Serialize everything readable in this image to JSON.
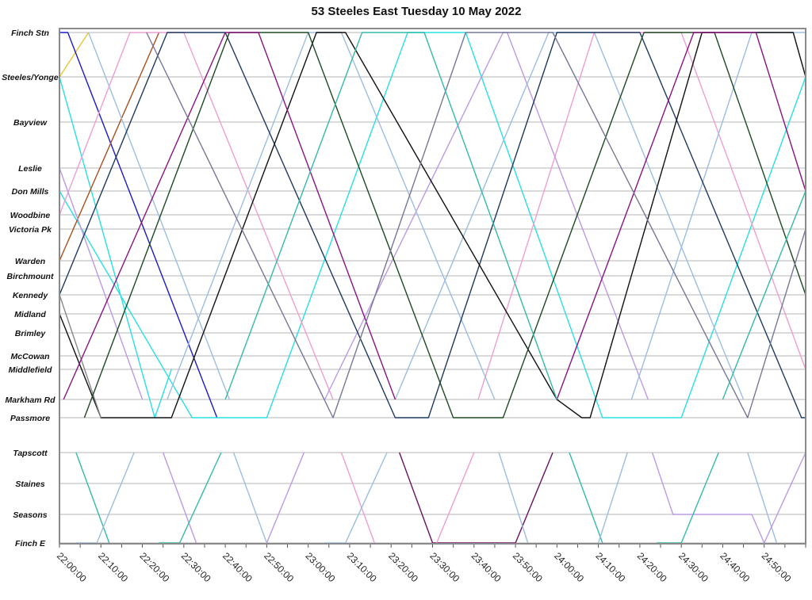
{
  "chart_data": {
    "type": "line",
    "title": "53 Steeles East Tuesday 10 May 2022",
    "x_axis": {
      "type": "time",
      "range": [
        "22:00",
        "25:00"
      ],
      "tick_labels": [
        "22:00:00",
        "22:10:00",
        "22:20:00",
        "22:30:00",
        "22:40:00",
        "22:50:00",
        "23:00:00",
        "23:10:00",
        "23:20:00",
        "23:30:00",
        "23:40:00",
        "23:50:00",
        "24:00:00",
        "24:10:00",
        "24:20:00",
        "24:30:00",
        "24:40:00",
        "24:50:00"
      ],
      "minor_tick_minutes": 5
    },
    "y_axis": {
      "type": "stops",
      "stops": [
        "Finch Stn",
        "Steeles/Yonge",
        "Bayview",
        "Leslie",
        "Don Mills",
        "Woodbine",
        "Victoria Pk",
        "Warden",
        "Birchmount",
        "Kennedy",
        "Midland",
        "Brimley",
        "McCowan",
        "Middlefield",
        "Markham Rd",
        "Passmore",
        "Tapscott",
        "Staines",
        "Seasons",
        "Finch E"
      ]
    },
    "grid": true,
    "legend": "none",
    "series": [
      {
        "color": "#e8c634",
        "points": [
          [
            "22:00",
            "Steeles/Yonge"
          ],
          [
            "22:07",
            "Finch Stn"
          ]
        ]
      },
      {
        "color": "#1a1acc",
        "points": [
          [
            "22:00",
            "Finch Stn"
          ],
          [
            "22:02",
            "Finch Stn"
          ],
          [
            "22:38",
            "Passmore"
          ]
        ]
      },
      {
        "color": "#28e0e0",
        "points": [
          [
            "22:00",
            "Steeles/Yonge"
          ],
          [
            "22:23",
            "Passmore"
          ],
          [
            "22:27",
            "Middlefield"
          ]
        ]
      },
      {
        "color": "#28e0e0",
        "points": [
          [
            "22:00",
            "Don Mills"
          ],
          [
            "22:32",
            "Passmore"
          ],
          [
            "22:50",
            "Passmore"
          ],
          [
            "23:24",
            "Finch Stn"
          ],
          [
            "23:38",
            "Finch Stn"
          ],
          [
            "24:11",
            "Passmore"
          ],
          [
            "24:30",
            "Passmore"
          ],
          [
            "25:00",
            "Steeles/Yonge"
          ]
        ]
      },
      {
        "color": "#a8501c",
        "points": [
          [
            "22:00",
            "Warden"
          ],
          [
            "22:24",
            "Finch Stn"
          ]
        ]
      },
      {
        "color": "#ee9fd0",
        "points": [
          [
            "22:00",
            "Woodbine"
          ],
          [
            "22:17",
            "Finch Stn"
          ],
          [
            "22:30",
            "Finch Stn"
          ],
          [
            "23:06",
            "Markham Rd"
          ]
        ]
      },
      {
        "color": "#ee9fd0",
        "points": [
          [
            "23:41",
            "Markham Rd"
          ],
          [
            "24:09",
            "Finch Stn"
          ],
          [
            "24:30",
            "Finch Stn"
          ],
          [
            "25:00",
            "Middlefield"
          ]
        ]
      },
      {
        "color": "#bb9ae2",
        "points": [
          [
            "22:00",
            "Leslie"
          ],
          [
            "22:20",
            "Markham Rd"
          ]
        ]
      },
      {
        "color": "#bb9ae2",
        "points": [
          [
            "23:04",
            "Markham Rd"
          ],
          [
            "23:47",
            "Finch Stn"
          ],
          [
            "23:48",
            "Finch Stn"
          ],
          [
            "24:22",
            "Markham Rd"
          ]
        ]
      },
      {
        "color": "#9dbde0",
        "points": [
          [
            "22:07",
            "Finch Stn"
          ],
          [
            "22:41",
            "Markham Rd"
          ]
        ]
      },
      {
        "color": "#9dbde0",
        "points": [
          [
            "22:26",
            "Markham Rd"
          ],
          [
            "23:00",
            "Finch Stn"
          ],
          [
            "23:08",
            "Finch Stn"
          ],
          [
            "23:45",
            "Markham Rd"
          ]
        ]
      },
      {
        "color": "#9dbde0",
        "points": [
          [
            "23:21",
            "Markham Rd"
          ],
          [
            "23:58",
            "Finch Stn"
          ],
          [
            "24:09",
            "Finch Stn"
          ],
          [
            "24:45",
            "Markham Rd"
          ]
        ]
      },
      {
        "color": "#9dbde0",
        "points": [
          [
            "24:18",
            "Markham Rd"
          ],
          [
            "24:47",
            "Finch Stn"
          ],
          [
            "25:00",
            "Finch Stn"
          ]
        ]
      },
      {
        "color": "#1f3a5f",
        "points": [
          [
            "22:00",
            "Kennedy"
          ],
          [
            "22:26",
            "Finch Stn"
          ],
          [
            "22:40",
            "Finch Stn"
          ],
          [
            "23:21",
            "Passmore"
          ],
          [
            "23:29",
            "Passmore"
          ],
          [
            "24:00",
            "Finch Stn"
          ],
          [
            "24:20",
            "Finch Stn"
          ],
          [
            "24:59",
            "Passmore"
          ],
          [
            "25:00",
            "Passmore"
          ]
        ]
      },
      {
        "color": "#111111",
        "points": [
          [
            "22:00",
            "Midland"
          ],
          [
            "22:10",
            "Passmore"
          ],
          [
            "22:27",
            "Passmore"
          ],
          [
            "23:02",
            "Finch Stn"
          ],
          [
            "23:09",
            "Finch Stn"
          ],
          [
            "24:00",
            "Markham Rd"
          ],
          [
            "24:06",
            "Passmore"
          ],
          [
            "24:08",
            "Passmore"
          ],
          [
            "24:35",
            "Finch Stn"
          ],
          [
            "24:57",
            "Finch Stn"
          ],
          [
            "25:00",
            "Steeles/Yonge"
          ]
        ]
      },
      {
        "color": "#888888",
        "points": [
          [
            "22:00",
            "Kennedy"
          ],
          [
            "22:10",
            "Passmore"
          ]
        ]
      },
      {
        "color": "#1e4a22",
        "points": [
          [
            "22:06",
            "Passmore"
          ],
          [
            "22:41",
            "Finch Stn"
          ],
          [
            "23:00",
            "Finch Stn"
          ],
          [
            "23:35",
            "Passmore"
          ],
          [
            "23:47",
            "Passmore"
          ],
          [
            "24:21",
            "Finch Stn"
          ],
          [
            "24:38",
            "Finch Stn"
          ],
          [
            "25:00",
            "Kennedy"
          ]
        ]
      },
      {
        "color": "#8a1480",
        "points": [
          [
            "22:01",
            "Markham Rd"
          ],
          [
            "22:40",
            "Finch Stn"
          ],
          [
            "22:48",
            "Finch Stn"
          ],
          [
            "23:21",
            "Markham Rd"
          ]
        ]
      },
      {
        "color": "#8a1480",
        "points": [
          [
            "24:00",
            "Markham Rd"
          ],
          [
            "24:33",
            "Finch Stn"
          ],
          [
            "24:48",
            "Finch Stn"
          ],
          [
            "25:00",
            "Don Mills"
          ]
        ]
      },
      {
        "color": "#767898",
        "points": [
          [
            "22:21",
            "Finch Stn"
          ],
          [
            "23:06",
            "Passmore"
          ],
          [
            "23:38",
            "Finch Stn"
          ],
          [
            "23:59",
            "Finch Stn"
          ],
          [
            "24:46",
            "Passmore"
          ],
          [
            "25:00",
            "Victoria Pk"
          ]
        ]
      },
      {
        "color": "#33bba8",
        "points": [
          [
            "22:40",
            "Markham Rd"
          ],
          [
            "23:13",
            "Finch Stn"
          ],
          [
            "23:28",
            "Finch Stn"
          ],
          [
            "24:00",
            "Markham Rd"
          ]
        ]
      },
      {
        "color": "#33bba8",
        "points": [
          [
            "24:40",
            "Markham Rd"
          ],
          [
            "25:00",
            "Don Mills"
          ]
        ]
      },
      {
        "color": "#33bba8",
        "points": [
          [
            "22:04",
            "Tapscott"
          ],
          [
            "22:12",
            "Finch E"
          ]
        ]
      },
      {
        "color": "#9dbde0",
        "points": [
          [
            "22:04",
            "Finch E"
          ],
          [
            "22:09",
            "Finch E"
          ],
          [
            "22:18",
            "Tapscott"
          ]
        ]
      },
      {
        "color": "#bb9ae2",
        "points": [
          [
            "22:25",
            "Tapscott"
          ],
          [
            "22:33",
            "Finch E"
          ]
        ]
      },
      {
        "color": "#33bba8",
        "points": [
          [
            "22:24",
            "Finch E"
          ],
          [
            "22:29",
            "Finch E"
          ],
          [
            "22:39",
            "Tapscott"
          ]
        ]
      },
      {
        "color": "#9dbde0",
        "points": [
          [
            "22:42",
            "Tapscott"
          ],
          [
            "22:50",
            "Finch E"
          ]
        ]
      },
      {
        "color": "#bb9ae2",
        "points": [
          [
            "22:50",
            "Finch E"
          ],
          [
            "22:59",
            "Tapscott"
          ]
        ]
      },
      {
        "color": "#ee9fd0",
        "points": [
          [
            "23:08",
            "Tapscott"
          ],
          [
            "23:16",
            "Finch E"
          ]
        ]
      },
      {
        "color": "#9dbde0",
        "points": [
          [
            "23:04",
            "Finch E"
          ],
          [
            "23:09",
            "Finch E"
          ],
          [
            "23:19",
            "Tapscott"
          ]
        ]
      },
      {
        "color": "#6a1060",
        "points": [
          [
            "23:22",
            "Tapscott"
          ],
          [
            "23:30",
            "Finch E"
          ],
          [
            "23:50",
            "Finch E"
          ],
          [
            "23:59",
            "Tapscott"
          ]
        ]
      },
      {
        "color": "#ee9fd0",
        "points": [
          [
            "23:31",
            "Finch E"
          ],
          [
            "23:40",
            "Tapscott"
          ]
        ]
      },
      {
        "color": "#9dbde0",
        "points": [
          [
            "23:46",
            "Tapscott"
          ],
          [
            "23:53",
            "Finch E"
          ]
        ]
      },
      {
        "color": "#33bba8",
        "points": [
          [
            "24:03",
            "Tapscott"
          ],
          [
            "24:11",
            "Finch E"
          ]
        ]
      },
      {
        "color": "#9dbde0",
        "points": [
          [
            "24:10",
            "Finch E"
          ],
          [
            "24:17",
            "Tapscott"
          ]
        ]
      },
      {
        "color": "#bb9ae2",
        "points": [
          [
            "24:23",
            "Tapscott"
          ],
          [
            "24:28",
            "Seasons"
          ],
          [
            "24:47",
            "Seasons"
          ],
          [
            "24:50",
            "Finch E"
          ]
        ]
      },
      {
        "color": "#33bba8",
        "points": [
          [
            "24:24",
            "Finch E"
          ],
          [
            "24:30",
            "Finch E"
          ],
          [
            "24:39",
            "Tapscott"
          ]
        ]
      },
      {
        "color": "#9dbde0",
        "points": [
          [
            "24:46",
            "Tapscott"
          ],
          [
            "24:53",
            "Finch E"
          ]
        ]
      },
      {
        "color": "#bb9ae2",
        "points": [
          [
            "24:50",
            "Finch E"
          ],
          [
            "25:00",
            "Tapscott"
          ]
        ]
      }
    ]
  }
}
